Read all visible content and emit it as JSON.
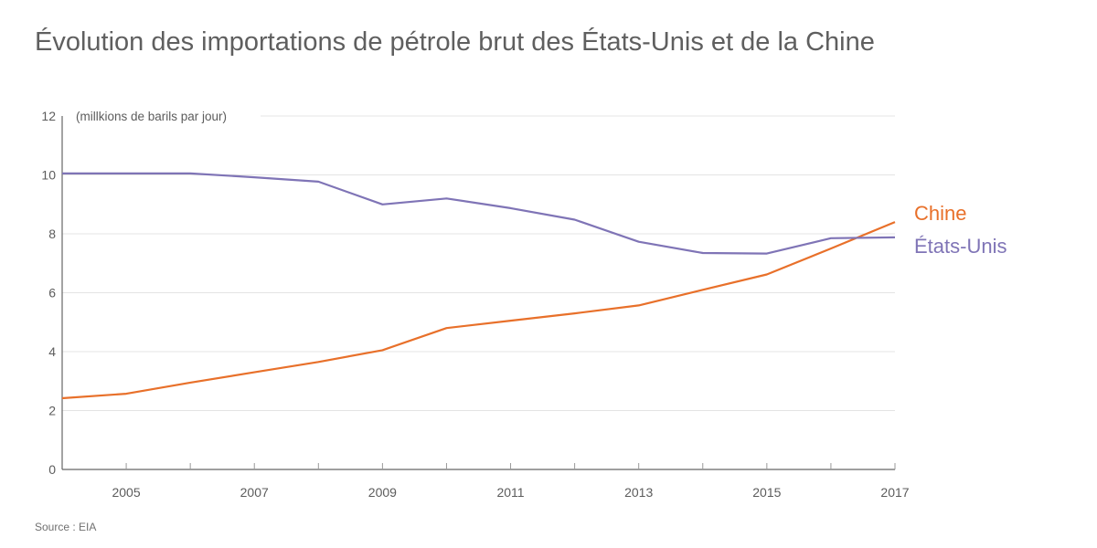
{
  "title": "Évolution des importations de pétrole brut des États-Unis et de la Chine",
  "source": "Source : EIA",
  "chart_data": {
    "type": "line",
    "title": "Évolution des importations de pétrole brut des États-Unis et de la Chine",
    "xlabel": "",
    "ylabel": "(millkions de barils par jour)",
    "x": [
      2004,
      2005,
      2006,
      2007,
      2008,
      2009,
      2010,
      2011,
      2012,
      2013,
      2014,
      2015,
      2016,
      2017
    ],
    "xlim": [
      2004,
      2017
    ],
    "ylim": [
      0,
      12
    ],
    "x_ticks": [
      "2005",
      "2007",
      "2009",
      "2011",
      "2013",
      "2015",
      "2017"
    ],
    "y_ticks": [
      "0",
      "2",
      "4",
      "6",
      "8",
      "10",
      "12"
    ],
    "grid": true,
    "legend_placement": "right",
    "series": [
      {
        "name": "Chine",
        "color": "#e8702a",
        "values": [
          2.42,
          2.57,
          2.95,
          3.3,
          3.65,
          4.05,
          4.8,
          5.05,
          5.3,
          5.57,
          6.1,
          6.62,
          7.5,
          8.4
        ]
      },
      {
        "name": "États-Unis",
        "color": "#7f74b6",
        "values": [
          10.05,
          10.05,
          10.05,
          9.92,
          9.77,
          9.0,
          9.2,
          8.87,
          8.48,
          7.73,
          7.35,
          7.33,
          7.85,
          7.88
        ]
      }
    ]
  }
}
